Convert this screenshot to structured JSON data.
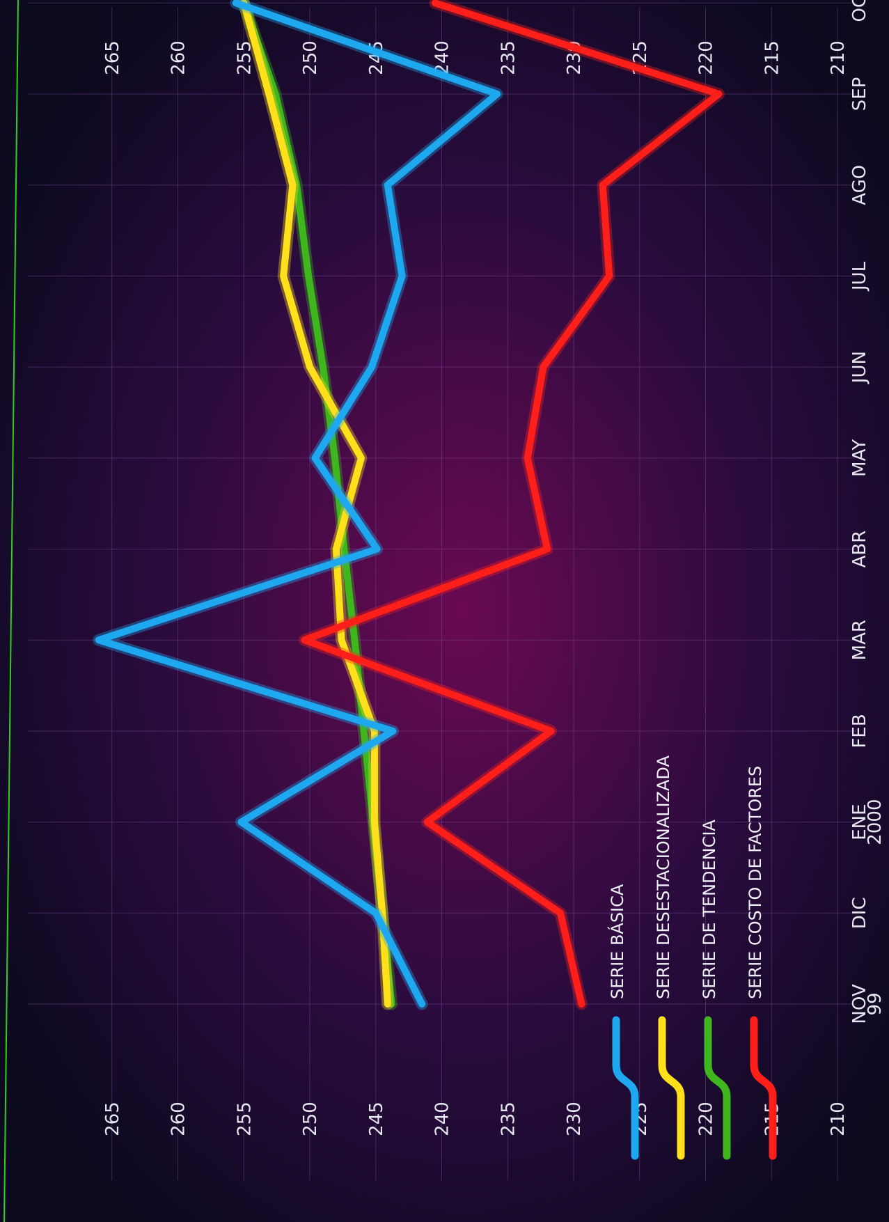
{
  "chart_data": {
    "type": "line",
    "title": "",
    "xlabel": "",
    "ylabel": "",
    "categories": [
      [
        "NOV",
        "99"
      ],
      [
        "DIC"
      ],
      [
        "ENE",
        "2000"
      ],
      [
        "FEB"
      ],
      [
        "MAR"
      ],
      [
        "ABR"
      ],
      [
        "MAY"
      ],
      [
        "JUN"
      ],
      [
        "JUL"
      ],
      [
        "AGO"
      ],
      [
        "SEP"
      ],
      [
        "OCT"
      ]
    ],
    "ylim": [
      210,
      265
    ],
    "yticks": [
      210,
      215,
      220,
      225,
      230,
      235,
      240,
      245,
      250,
      255,
      260,
      265
    ],
    "grid": true,
    "legend_position": "bottom-left",
    "series": [
      {
        "name": "SERIE BÁSICA",
        "color": "#1ea8f0",
        "values": [
          241.5,
          245.0,
          255.2,
          243.7,
          266.0,
          244.9,
          249.6,
          245.3,
          243.0,
          244.1,
          235.8,
          255.6
        ]
      },
      {
        "name": "SERIE DESESTACIONALIZADA",
        "color": "#ffe01a",
        "values": [
          244.1,
          244.5,
          245.1,
          245.1,
          247.6,
          248.0,
          246.1,
          250.0,
          252.0,
          251.3,
          253.1,
          255.0
        ]
      },
      {
        "name": "SERIE DE TENDENCIA",
        "color": "#3fb51e",
        "values": [
          243.8,
          244.5,
          245.2,
          245.9,
          246.6,
          247.4,
          248.1,
          249.0,
          250.1,
          251.0,
          252.6,
          255.0
        ]
      },
      {
        "name": "SERIE COSTO DE FACTORES",
        "color": "#ff1f1a",
        "values": [
          229.4,
          231.0,
          241.1,
          231.7,
          250.4,
          232.0,
          233.5,
          232.3,
          227.3,
          227.8,
          219.0,
          240.5
        ]
      }
    ]
  }
}
